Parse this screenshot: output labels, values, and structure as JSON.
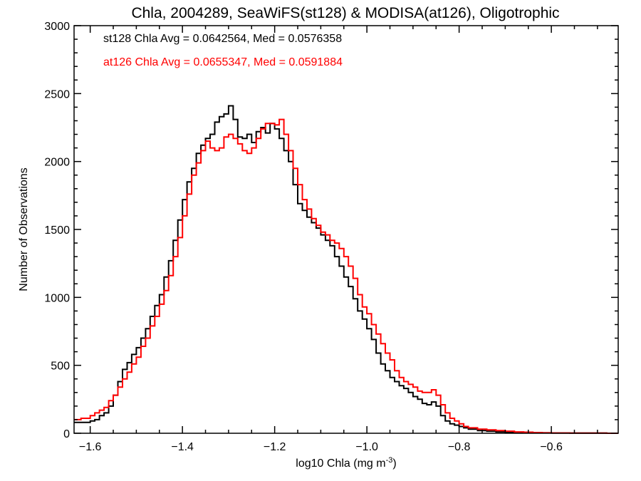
{
  "chart_data": {
    "type": "line",
    "title": "Chla, 2004289, SeaWiFS(st128) & MODISA(at126), Oligotrophic",
    "xlabel": "log10 Chla (mg m",
    "xlabel_sup": "-3",
    "xlabel_end": ")",
    "ylabel": "Number of Observations",
    "xlim": [
      -1.635,
      -0.455
    ],
    "ylim": [
      0,
      3000
    ],
    "x_ticks": [
      -1.6,
      -1.4,
      -1.2,
      -1.0,
      -0.8,
      -0.6
    ],
    "x_tick_labels": [
      "−1.6",
      "−1.4",
      "−1.2",
      "−1.0",
      "−0.8",
      "−0.6"
    ],
    "y_ticks": [
      0,
      500,
      1000,
      1500,
      2000,
      2500,
      3000
    ],
    "y_tick_labels": [
      "0",
      "500",
      "1000",
      "1500",
      "2000",
      "2500",
      "3000"
    ],
    "annotations": [
      {
        "text": "st128 Chla Avg = 0.0642564, Med = 0.0576358",
        "color": "#000000"
      },
      {
        "text": "at126 Chla Avg = 0.0655347, Med = 0.0591884",
        "color": "#ff0000"
      }
    ],
    "series": [
      {
        "color": "#000000",
        "step": true,
        "x": [
          -1.635,
          -1.62,
          -1.6,
          -1.59,
          -1.58,
          -1.57,
          -1.56,
          -1.55,
          -1.54,
          -1.53,
          -1.52,
          -1.51,
          -1.5,
          -1.49,
          -1.48,
          -1.47,
          -1.46,
          -1.45,
          -1.44,
          -1.43,
          -1.42,
          -1.41,
          -1.4,
          -1.39,
          -1.38,
          -1.37,
          -1.36,
          -1.35,
          -1.34,
          -1.33,
          -1.32,
          -1.31,
          -1.3,
          -1.29,
          -1.28,
          -1.27,
          -1.26,
          -1.25,
          -1.24,
          -1.23,
          -1.22,
          -1.21,
          -1.2,
          -1.19,
          -1.18,
          -1.17,
          -1.16,
          -1.15,
          -1.14,
          -1.13,
          -1.12,
          -1.11,
          -1.1,
          -1.09,
          -1.08,
          -1.07,
          -1.06,
          -1.05,
          -1.04,
          -1.03,
          -1.02,
          -1.01,
          -1.0,
          -0.99,
          -0.98,
          -0.97,
          -0.96,
          -0.95,
          -0.94,
          -0.93,
          -0.92,
          -0.91,
          -0.9,
          -0.89,
          -0.88,
          -0.87,
          -0.86,
          -0.85,
          -0.84,
          -0.83,
          -0.82,
          -0.81,
          -0.8,
          -0.79,
          -0.78,
          -0.76,
          -0.74,
          -0.72,
          -0.7,
          -0.68,
          -0.66,
          -0.64,
          -0.62,
          -0.6,
          -0.58,
          -0.56,
          -0.54,
          -0.52,
          -0.5,
          -0.48,
          -0.455
        ],
        "y": [
          80,
          80,
          90,
          100,
          130,
          150,
          200,
          280,
          380,
          470,
          520,
          580,
          630,
          700,
          770,
          860,
          940,
          1020,
          1150,
          1270,
          1420,
          1570,
          1720,
          1850,
          1950,
          2060,
          2120,
          2170,
          2200,
          2290,
          2330,
          2350,
          2410,
          2310,
          2180,
          2170,
          2200,
          2140,
          2220,
          2250,
          2210,
          2280,
          2240,
          2170,
          2080,
          2000,
          1830,
          1690,
          1640,
          1590,
          1550,
          1510,
          1460,
          1420,
          1380,
          1300,
          1230,
          1150,
          1080,
          990,
          900,
          840,
          770,
          690,
          590,
          510,
          460,
          410,
          380,
          350,
          330,
          300,
          270,
          250,
          220,
          210,
          230,
          200,
          130,
          90,
          70,
          60,
          50,
          40,
          30,
          20,
          15,
          10,
          8,
          6,
          5,
          4,
          3,
          2,
          2,
          1,
          1,
          1,
          1,
          0,
          0
        ]
      },
      {
        "color": "#ff0000",
        "step": true,
        "x": [
          -1.635,
          -1.62,
          -1.6,
          -1.59,
          -1.58,
          -1.57,
          -1.56,
          -1.55,
          -1.54,
          -1.53,
          -1.52,
          -1.51,
          -1.5,
          -1.49,
          -1.48,
          -1.47,
          -1.46,
          -1.45,
          -1.44,
          -1.43,
          -1.42,
          -1.41,
          -1.4,
          -1.39,
          -1.38,
          -1.37,
          -1.36,
          -1.35,
          -1.34,
          -1.33,
          -1.32,
          -1.31,
          -1.3,
          -1.29,
          -1.28,
          -1.27,
          -1.26,
          -1.25,
          -1.24,
          -1.23,
          -1.22,
          -1.21,
          -1.2,
          -1.19,
          -1.18,
          -1.17,
          -1.16,
          -1.15,
          -1.14,
          -1.13,
          -1.12,
          -1.11,
          -1.1,
          -1.09,
          -1.08,
          -1.07,
          -1.06,
          -1.05,
          -1.04,
          -1.03,
          -1.02,
          -1.01,
          -1.0,
          -0.99,
          -0.98,
          -0.97,
          -0.96,
          -0.95,
          -0.94,
          -0.93,
          -0.92,
          -0.91,
          -0.9,
          -0.89,
          -0.88,
          -0.87,
          -0.86,
          -0.85,
          -0.84,
          -0.83,
          -0.82,
          -0.81,
          -0.8,
          -0.79,
          -0.78,
          -0.76,
          -0.74,
          -0.72,
          -0.7,
          -0.68,
          -0.66,
          -0.64,
          -0.62,
          -0.6,
          -0.58,
          -0.56,
          -0.54,
          -0.52,
          -0.5,
          -0.48,
          -0.455
        ],
        "y": [
          100,
          110,
          130,
          150,
          170,
          190,
          240,
          280,
          340,
          400,
          450,
          510,
          560,
          640,
          700,
          790,
          860,
          950,
          1050,
          1160,
          1300,
          1440,
          1600,
          1760,
          1900,
          1990,
          2080,
          2150,
          2100,
          2080,
          2100,
          2180,
          2200,
          2170,
          2130,
          2080,
          2060,
          2100,
          2170,
          2240,
          2280,
          2280,
          2270,
          2310,
          2200,
          2080,
          1950,
          1830,
          1720,
          1650,
          1580,
          1530,
          1480,
          1460,
          1420,
          1400,
          1360,
          1300,
          1230,
          1140,
          1020,
          930,
          880,
          800,
          730,
          660,
          590,
          540,
          460,
          410,
          380,
          360,
          340,
          310,
          300,
          300,
          320,
          280,
          210,
          150,
          110,
          90,
          70,
          50,
          40,
          30,
          25,
          20,
          15,
          10,
          8,
          5,
          3,
          2,
          2,
          1,
          1,
          1,
          1,
          0,
          0
        ]
      }
    ]
  }
}
